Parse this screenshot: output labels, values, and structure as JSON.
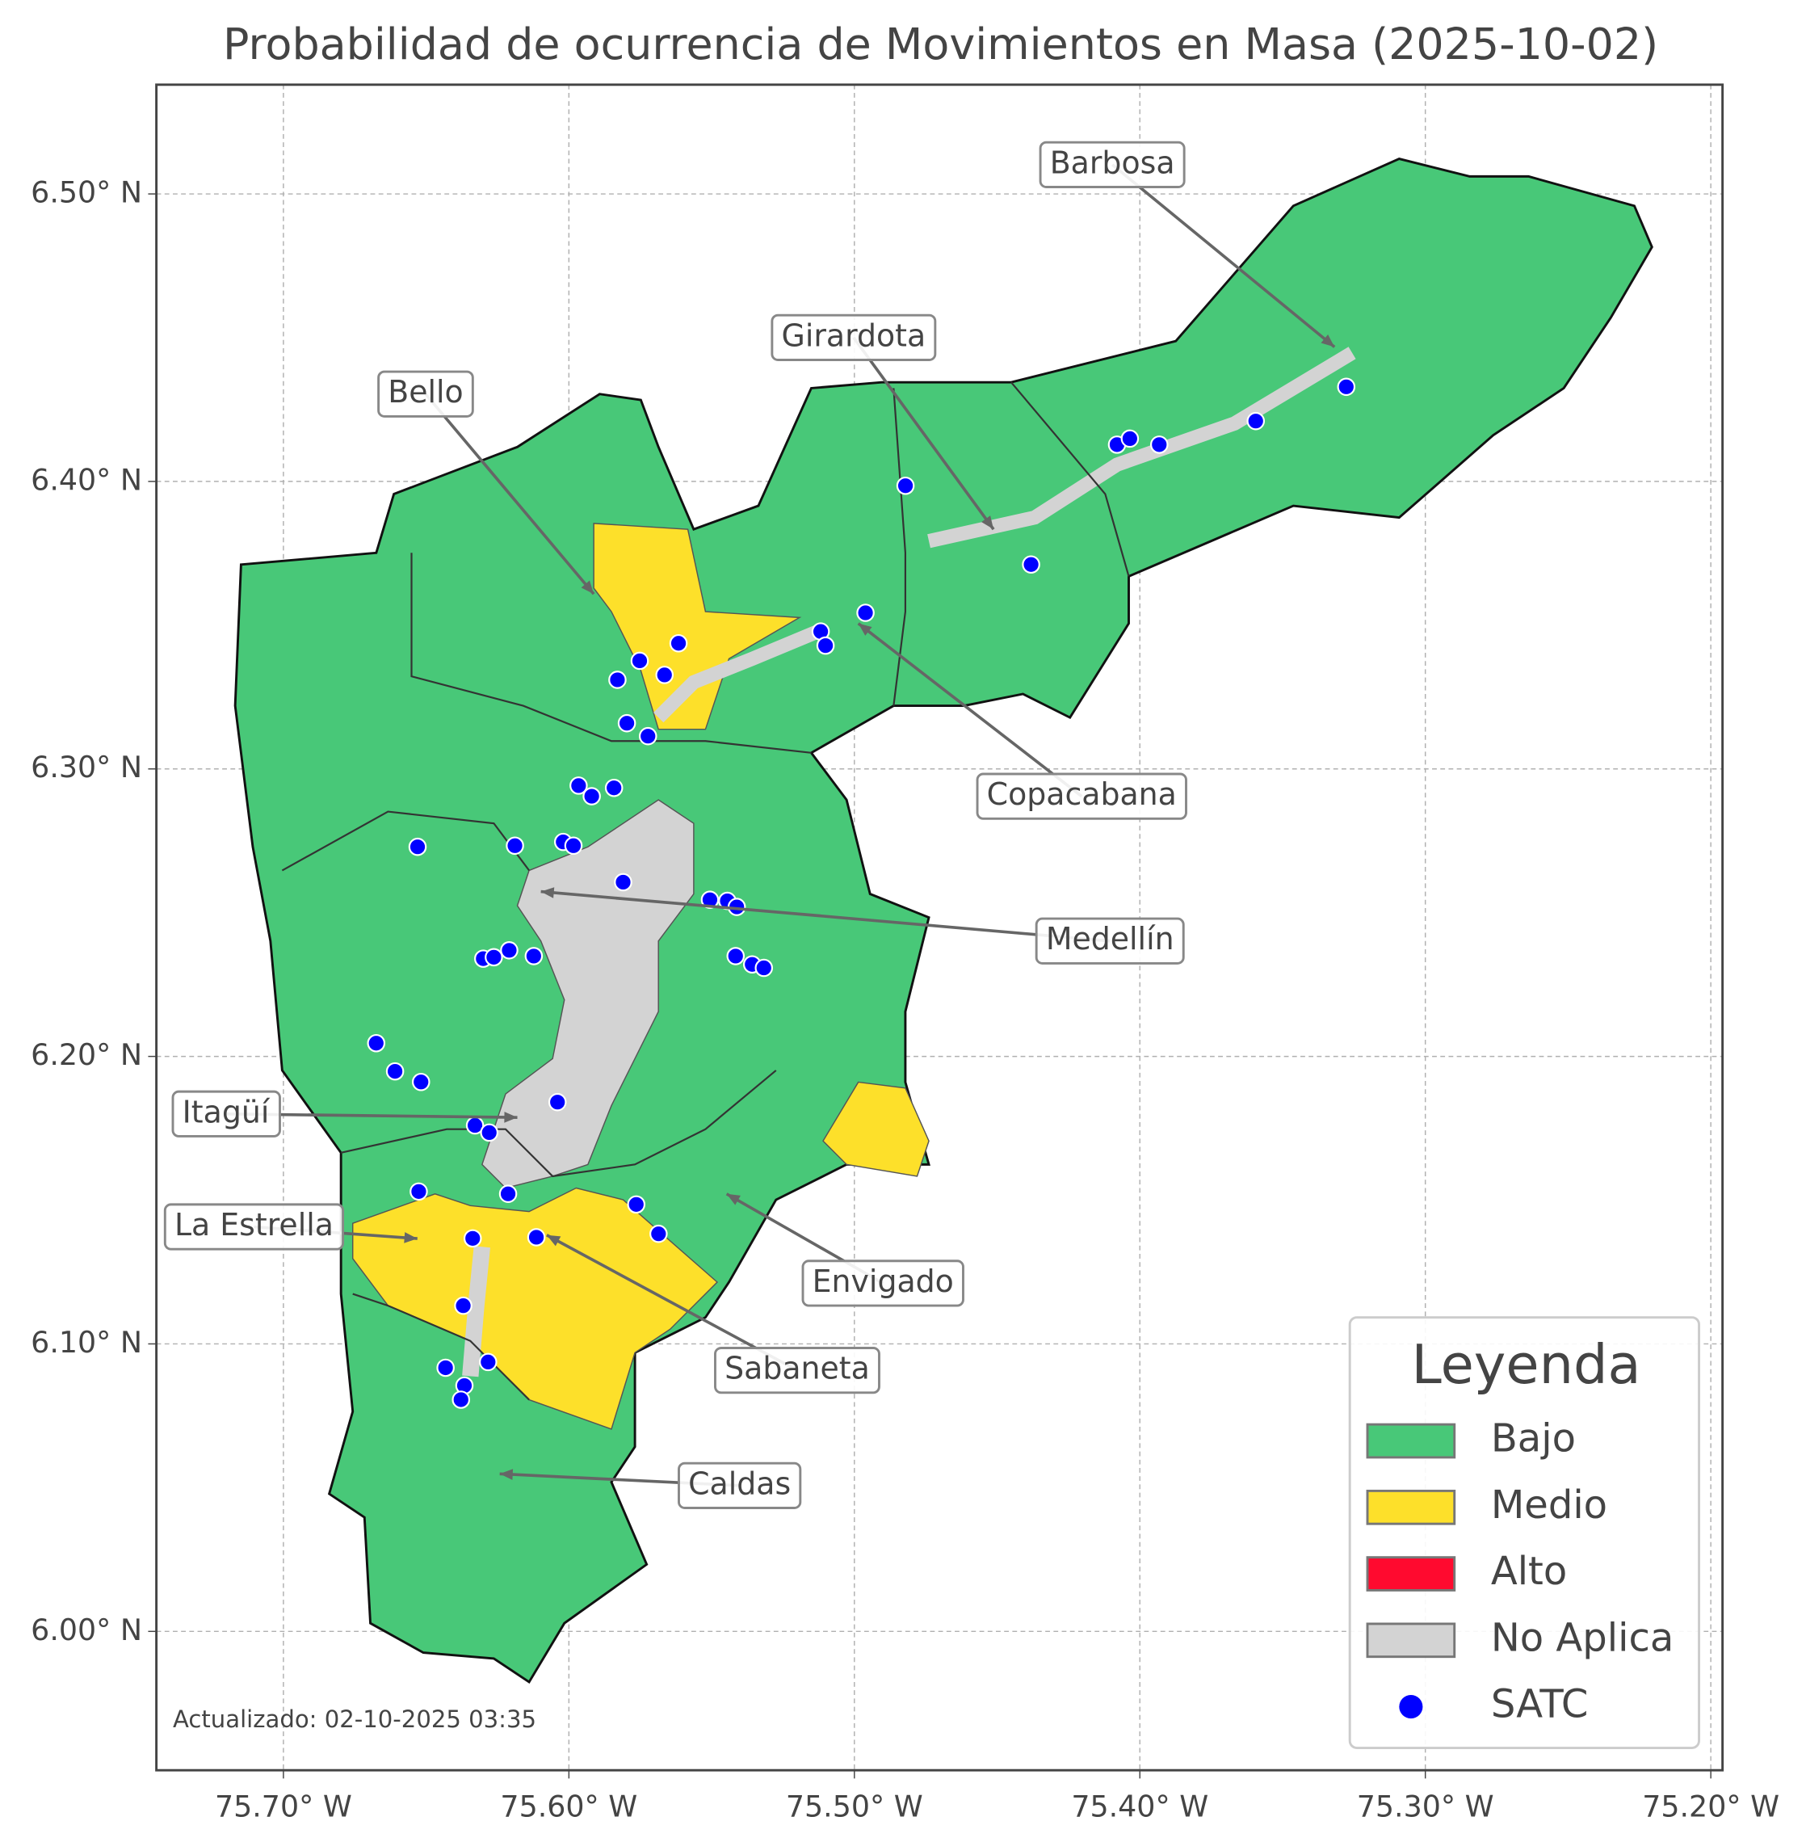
{
  "map": {
    "title": "Probabilidad de ocurrencia de Movimientos en Masa (2025-10-02)",
    "xlim": [
      -75.7445,
      -75.1959
    ],
    "ylim": [
      5.9517,
      6.538
    ],
    "xticks": [
      {
        "value": -75.7,
        "label": "75.70° W"
      },
      {
        "value": -75.6,
        "label": "75.60° W"
      },
      {
        "value": -75.5,
        "label": "75.50° W"
      },
      {
        "value": -75.4,
        "label": "75.40° W"
      },
      {
        "value": -75.3,
        "label": "75.30° W"
      },
      {
        "value": -75.2,
        "label": "75.20° W"
      }
    ],
    "yticks": [
      {
        "value": 6.0,
        "label": "6.00° N"
      },
      {
        "value": 6.1,
        "label": "6.10° N"
      },
      {
        "value": 6.2,
        "label": "6.20° N"
      },
      {
        "value": 6.3,
        "label": "6.30° N"
      },
      {
        "value": 6.4,
        "label": "6.40° N"
      },
      {
        "value": 6.5,
        "label": "6.50° N"
      }
    ],
    "grid": true,
    "annotations": [
      "Barbosa",
      "Girardota",
      "Bello",
      "Copacabana",
      "Medellín",
      "Itagüí",
      "La Estrella",
      "Envigado",
      "Sabaneta",
      "Caldas"
    ],
    "legend": {
      "title": "Leyenda",
      "entries": [
        {
          "name": "Bajo",
          "color": "#48c878"
        },
        {
          "name": "Medio",
          "color": "#fde02a"
        },
        {
          "name": "Alto",
          "color": "#ff0a2f"
        },
        {
          "name": "No Aplica",
          "color": "#d3d3d3"
        },
        {
          "name": "SATC",
          "color": "#0000ff"
        }
      ]
    },
    "stations": {
      "lon": [
        -75.3277,
        -75.3594,
        -75.408,
        -75.4035,
        -75.3932,
        -75.4821,
        -75.4381,
        -75.4961,
        -75.5118,
        -75.5101,
        -75.5616,
        -75.5752,
        -75.5665,
        -75.583,
        -75.5797,
        -75.5723,
        -75.5966,
        -75.592,
        -75.5842,
        -75.653,
        -75.6189,
        -75.602,
        -75.5984,
        -75.581,
        -75.5506,
        -75.5445,
        -75.5412,
        -75.5416,
        -75.5358,
        -75.5317,
        -75.6209,
        -75.63,
        -75.6263,
        -75.6123,
        -75.6675,
        -75.6609,
        -75.6518,
        -75.604,
        -75.6329,
        -75.6279,
        -75.6526,
        -75.6213,
        -75.5764,
        -75.5686,
        -75.6337,
        -75.6114,
        -75.637,
        -75.6432,
        -75.6283,
        -75.6366,
        -75.6378
      ],
      "lat": [
        6.4329,
        6.421,
        6.4128,
        6.4149,
        6.4128,
        6.3985,
        6.3711,
        6.3543,
        6.3478,
        6.3429,
        6.3437,
        6.3376,
        6.3327,
        6.331,
        6.3159,
        6.3114,
        6.2942,
        6.2905,
        6.2934,
        6.2729,
        6.2733,
        6.2746,
        6.2733,
        6.2606,
        6.2545,
        6.2541,
        6.252,
        6.2349,
        6.232,
        6.2308,
        6.2369,
        6.234,
        6.2345,
        6.2349,
        6.2046,
        6.1948,
        6.1911,
        6.1841,
        6.176,
        6.1735,
        6.153,
        6.1522,
        6.1485,
        6.1383,
        6.1367,
        6.1371,
        6.1133,
        6.0917,
        6.0937,
        6.0855,
        6.0806
      ]
    },
    "footer": "Actualizado: 02-10-2025 03:35"
  }
}
